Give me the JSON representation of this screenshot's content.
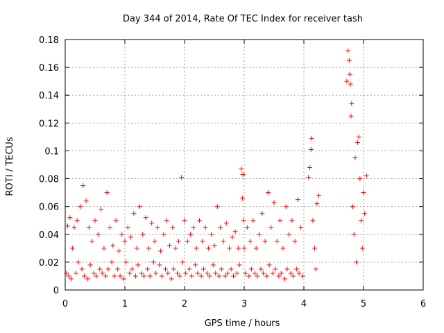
{
  "chart_data": {
    "type": "scatter",
    "title": "Day 344 of 2014, Rate Of TEC Index for receiver tash",
    "xlabel": "GPS time / hours",
    "ylabel": "ROTI / TECUs",
    "xlim": [
      0,
      6
    ],
    "ylim": [
      0,
      0.18
    ],
    "xticks": [
      0,
      1,
      2,
      3,
      4,
      5,
      6
    ],
    "yticks": [
      0,
      0.02,
      0.04,
      0.06,
      0.08,
      0.1,
      0.12,
      0.14,
      0.16,
      0.18
    ],
    "xtick_labels": [
      "0",
      "1",
      "2",
      "3",
      "4",
      "5",
      "6"
    ],
    "ytick_labels": [
      "0",
      "0.02",
      "0.04",
      "0.06",
      "0.08",
      "0.1",
      "0.12",
      "0.14",
      "0.16",
      "0.18"
    ],
    "grid": true,
    "marker": "+",
    "color": "#ff0000",
    "series": [
      {
        "name": "ROTI",
        "x": [
          0.02,
          0.04,
          0.06,
          0.08,
          0.1,
          0.12,
          0.15,
          0.18,
          0.2,
          0.22,
          0.25,
          0.28,
          0.3,
          0.32,
          0.35,
          0.38,
          0.4,
          0.42,
          0.45,
          0.48,
          0.5,
          0.52,
          0.55,
          0.58,
          0.6,
          0.62,
          0.65,
          0.68,
          0.7,
          0.72,
          0.75,
          0.78,
          0.8,
          0.82,
          0.85,
          0.88,
          0.9,
          0.92,
          0.95,
          0.98,
          1.0,
          1.02,
          1.05,
          1.08,
          1.1,
          1.12,
          1.15,
          1.18,
          1.2,
          1.22,
          1.25,
          1.28,
          1.3,
          1.32,
          1.35,
          1.38,
          1.4,
          1.42,
          1.45,
          1.48,
          1.5,
          1.52,
          1.55,
          1.58,
          1.6,
          1.62,
          1.65,
          1.68,
          1.7,
          1.72,
          1.75,
          1.78,
          1.8,
          1.82,
          1.85,
          1.88,
          1.9,
          1.92,
          1.95,
          1.97,
          2.0,
          2.02,
          2.05,
          2.08,
          2.1,
          2.12,
          2.15,
          2.18,
          2.2,
          2.22,
          2.25,
          2.28,
          2.3,
          2.32,
          2.35,
          2.38,
          2.4,
          2.42,
          2.45,
          2.48,
          2.5,
          2.52,
          2.55,
          2.58,
          2.6,
          2.62,
          2.65,
          2.68,
          2.7,
          2.72,
          2.75,
          2.78,
          2.8,
          2.82,
          2.85,
          2.88,
          2.9,
          2.92,
          2.95,
          2.97,
          2.98,
          2.99,
          3.0,
          3.02,
          3.05,
          3.08,
          3.1,
          3.12,
          3.15,
          3.18,
          3.2,
          3.22,
          3.25,
          3.28,
          3.3,
          3.32,
          3.35,
          3.38,
          3.4,
          3.42,
          3.45,
          3.48,
          3.5,
          3.52,
          3.55,
          3.58,
          3.6,
          3.62,
          3.65,
          3.68,
          3.7,
          3.72,
          3.75,
          3.78,
          3.8,
          3.82,
          3.85,
          3.88,
          3.9,
          3.92,
          3.95,
          3.98,
          4.08,
          4.1,
          4.12,
          4.13,
          4.15,
          4.18,
          4.2,
          4.22,
          4.25,
          4.72,
          4.74,
          4.76,
          4.77,
          4.78,
          4.79,
          4.8,
          4.82,
          4.84,
          4.86,
          4.88,
          4.9,
          4.92,
          4.94,
          4.96,
          4.98,
          5.0,
          5.02,
          5.05
        ],
        "y": [
          0.012,
          0.046,
          0.01,
          0.052,
          0.008,
          0.03,
          0.045,
          0.012,
          0.05,
          0.02,
          0.06,
          0.015,
          0.075,
          0.01,
          0.064,
          0.008,
          0.045,
          0.018,
          0.035,
          0.012,
          0.05,
          0.01,
          0.04,
          0.015,
          0.058,
          0.012,
          0.03,
          0.01,
          0.07,
          0.015,
          0.045,
          0.02,
          0.032,
          0.01,
          0.05,
          0.015,
          0.028,
          0.01,
          0.04,
          0.008,
          0.035,
          0.02,
          0.045,
          0.012,
          0.038,
          0.015,
          0.055,
          0.01,
          0.03,
          0.018,
          0.06,
          0.012,
          0.04,
          0.01,
          0.052,
          0.015,
          0.03,
          0.01,
          0.048,
          0.02,
          0.035,
          0.012,
          0.045,
          0.018,
          0.028,
          0.01,
          0.04,
          0.015,
          0.05,
          0.012,
          0.032,
          0.008,
          0.045,
          0.015,
          0.03,
          0.012,
          0.035,
          0.01,
          0.081,
          0.02,
          0.05,
          0.012,
          0.035,
          0.015,
          0.04,
          0.01,
          0.045,
          0.018,
          0.03,
          0.012,
          0.05,
          0.01,
          0.035,
          0.015,
          0.045,
          0.012,
          0.03,
          0.01,
          0.04,
          0.018,
          0.032,
          0.012,
          0.06,
          0.01,
          0.045,
          0.015,
          0.035,
          0.01,
          0.048,
          0.012,
          0.03,
          0.015,
          0.038,
          0.01,
          0.042,
          0.012,
          0.03,
          0.018,
          0.087,
          0.066,
          0.083,
          0.05,
          0.03,
          0.012,
          0.045,
          0.01,
          0.035,
          0.015,
          0.05,
          0.012,
          0.03,
          0.01,
          0.04,
          0.015,
          0.055,
          0.012,
          0.035,
          0.01,
          0.07,
          0.018,
          0.045,
          0.012,
          0.063,
          0.015,
          0.035,
          0.01,
          0.05,
          0.012,
          0.03,
          0.008,
          0.06,
          0.015,
          0.04,
          0.012,
          0.05,
          0.01,
          0.035,
          0.015,
          0.065,
          0.012,
          0.045,
          0.01,
          0.081,
          0.088,
          0.101,
          0.109,
          0.05,
          0.03,
          0.015,
          0.062,
          0.068,
          0.15,
          0.172,
          0.165,
          0.155,
          0.148,
          0.125,
          0.134,
          0.06,
          0.04,
          0.095,
          0.02,
          0.106,
          0.11,
          0.08,
          0.05,
          0.03,
          0.07,
          0.055,
          0.082
        ],
        "marker": "+"
      }
    ]
  }
}
